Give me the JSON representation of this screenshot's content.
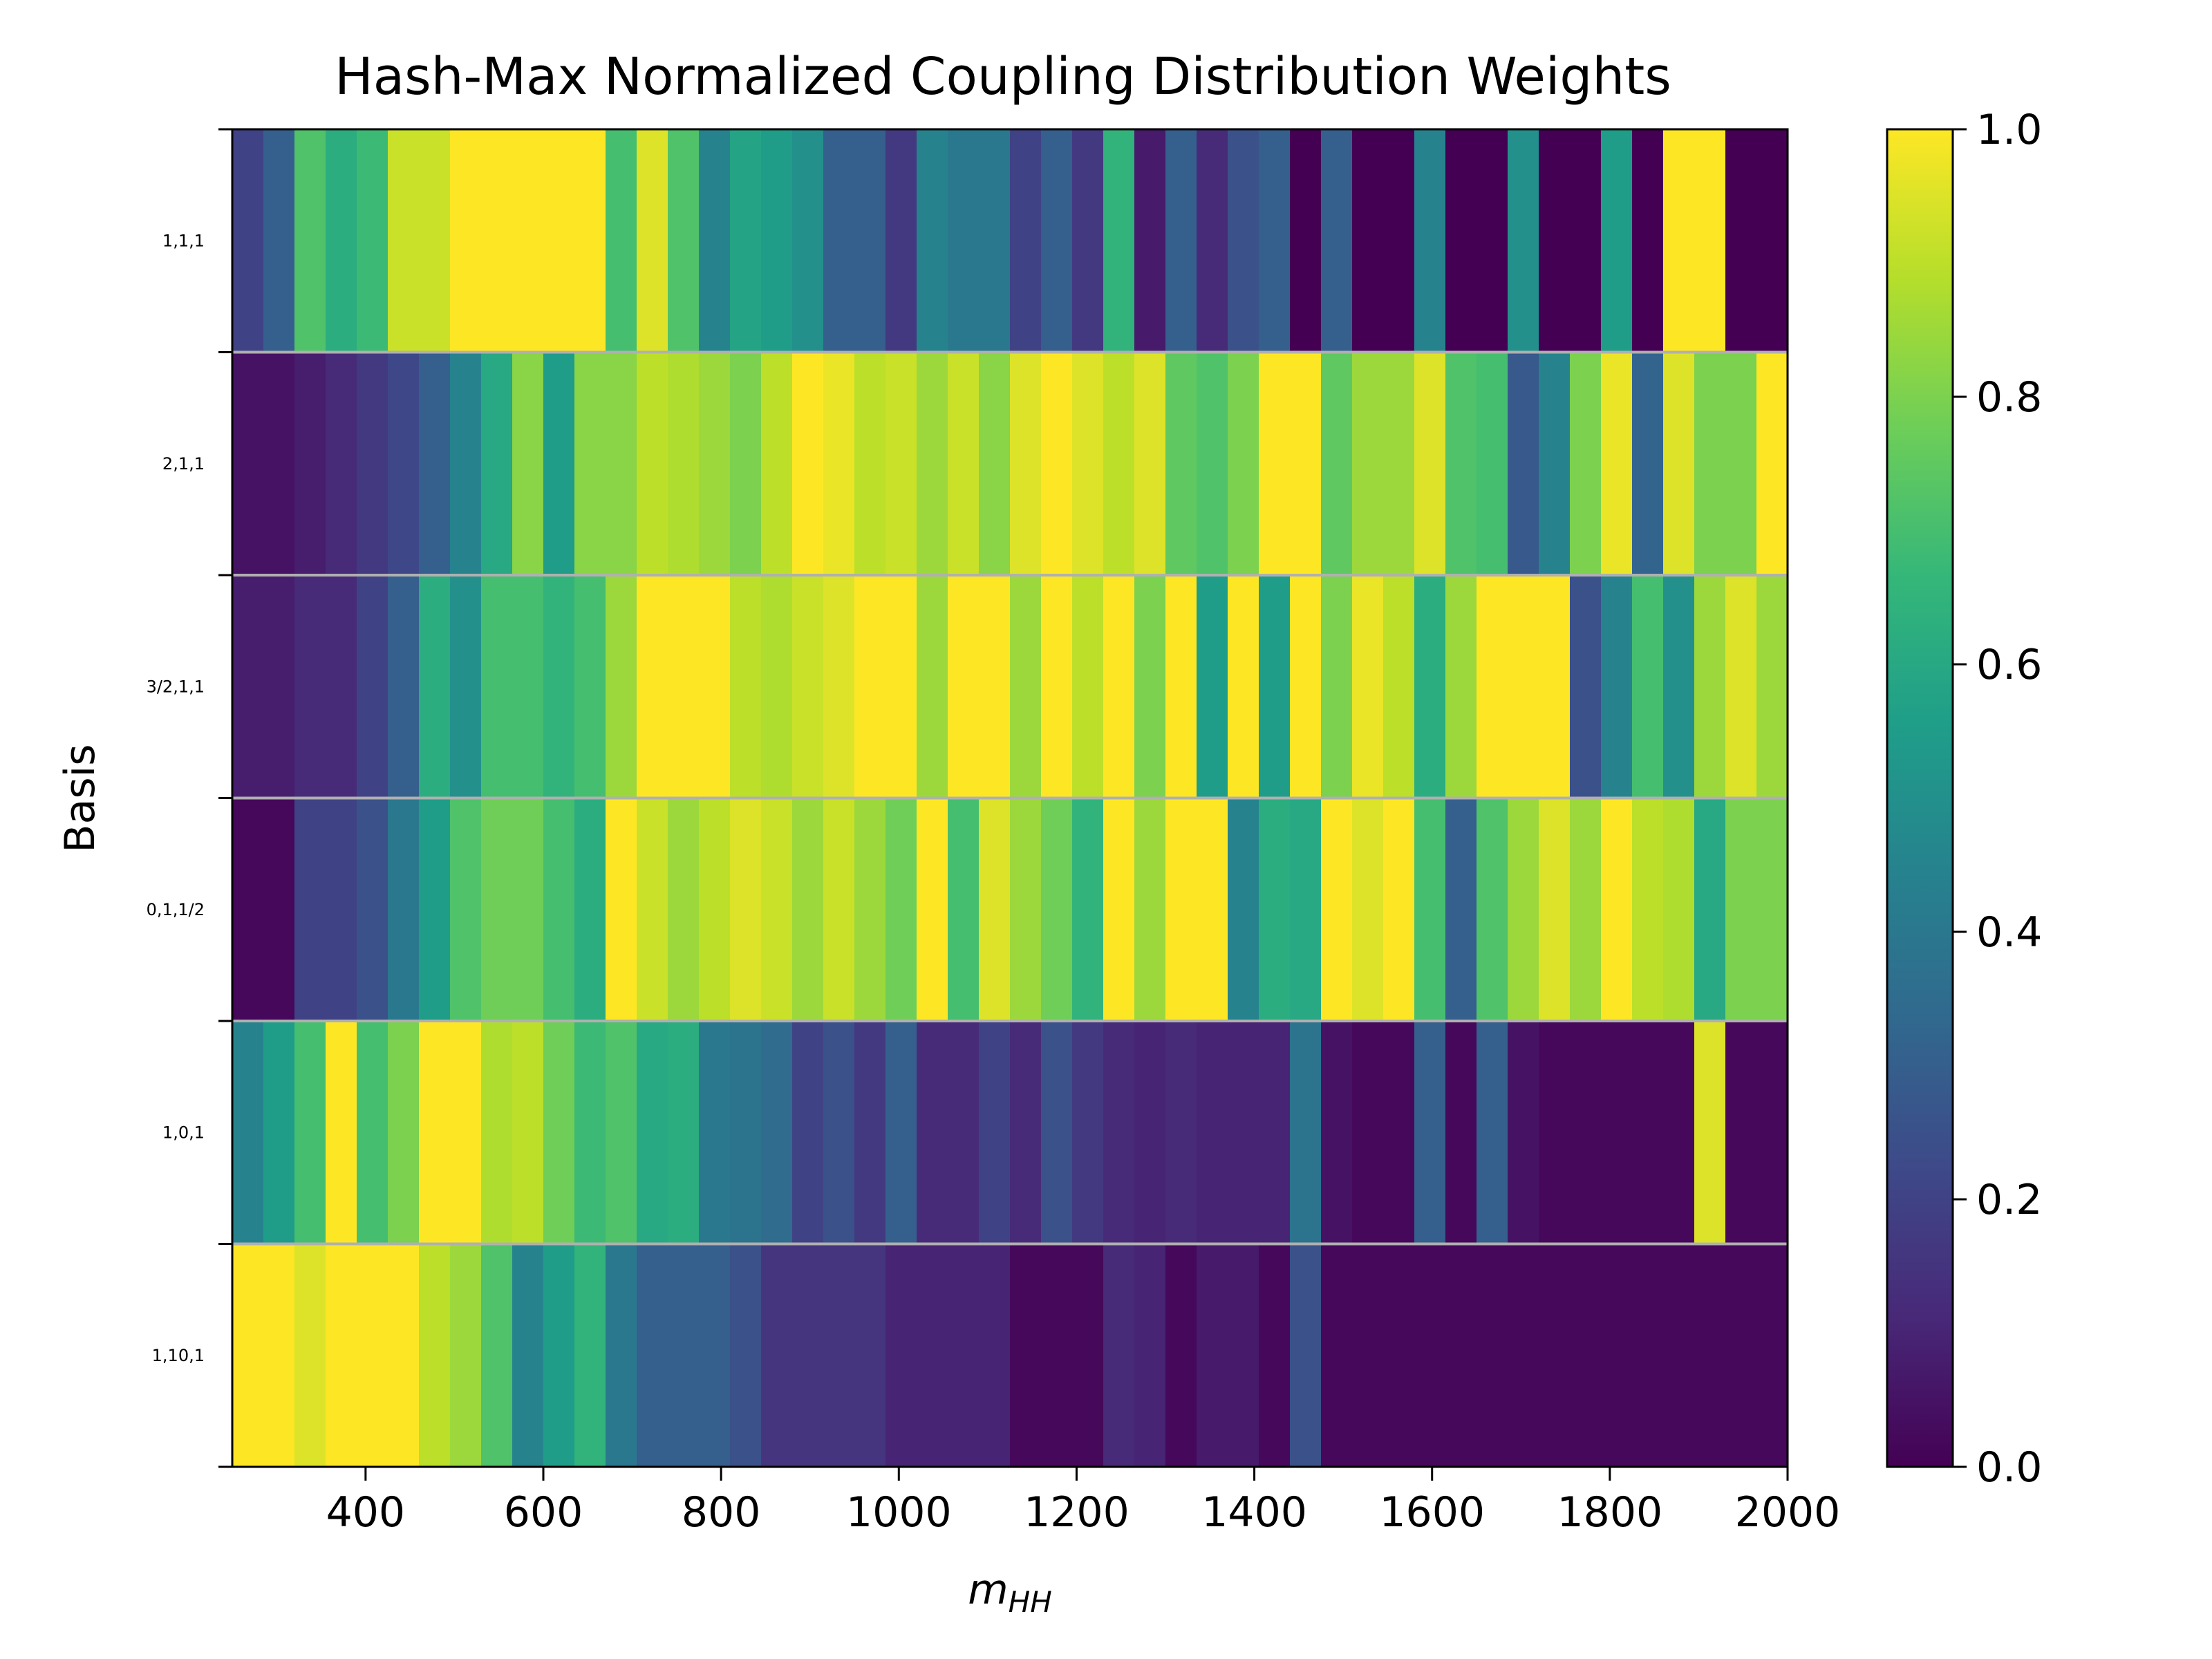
{
  "chart_data": {
    "type": "heatmap",
    "title": "Hash-Max Normalized Coupling Distribution Weights",
    "xlabel": "m",
    "xlabel_subscript": "HH",
    "ylabel": "Basis",
    "xlim": [
      250,
      2000
    ],
    "x_ticks": [
      400,
      600,
      800,
      1000,
      1200,
      1400,
      1600,
      1800,
      2000
    ],
    "x_tick_labels": [
      "400",
      "600",
      "800",
      "1000",
      "1200",
      "1400",
      "1600",
      "1800",
      "2000"
    ],
    "bin_edges": [
      250,
      285,
      320,
      355,
      390,
      425,
      460,
      495,
      530,
      565,
      600,
      635,
      670,
      705,
      740,
      775,
      810,
      845,
      880,
      915,
      950,
      985,
      1020,
      1055,
      1090,
      1125,
      1160,
      1195,
      1230,
      1265,
      1300,
      1335,
      1370,
      1405,
      1440,
      1475,
      1510,
      1545,
      1580,
      1615,
      1650,
      1685,
      1720,
      1755,
      1790,
      1825,
      1860,
      1895,
      1930,
      1965,
      2000
    ],
    "rows": [
      {
        "label": "1,1,1",
        "values": [
          0.2,
          0.3,
          0.72,
          0.62,
          0.68,
          0.92,
          0.92,
          1.0,
          1.0,
          1.0,
          1.0,
          1.0,
          0.7,
          0.95,
          0.72,
          0.45,
          0.58,
          0.55,
          0.5,
          0.3,
          0.3,
          0.17,
          0.45,
          0.4,
          0.4,
          0.2,
          0.3,
          0.17,
          0.65,
          0.07,
          0.3,
          0.12,
          0.25,
          0.3,
          0.0,
          0.3,
          0.0,
          0.0,
          0.45,
          0.0,
          0.0,
          0.5,
          0.0,
          0.0,
          0.55,
          0.0,
          1.0,
          1.0,
          0.0,
          0.0
        ]
      },
      {
        "label": "2,1,1",
        "values": [
          0.05,
          0.05,
          0.08,
          0.12,
          0.17,
          0.22,
          0.3,
          0.45,
          0.6,
          0.82,
          0.55,
          0.82,
          0.82,
          0.9,
          0.88,
          0.85,
          0.8,
          0.9,
          1.0,
          0.97,
          0.9,
          0.92,
          0.85,
          0.92,
          0.82,
          0.95,
          1.0,
          0.95,
          0.9,
          0.95,
          0.75,
          0.72,
          0.8,
          1.0,
          1.0,
          0.75,
          0.85,
          0.85,
          0.95,
          0.72,
          0.7,
          0.28,
          0.45,
          0.8,
          0.97,
          0.32,
          0.95,
          0.8,
          0.8,
          1.0
        ]
      },
      {
        "label": "3/2,1,1",
        "values": [
          0.08,
          0.08,
          0.12,
          0.12,
          0.2,
          0.3,
          0.62,
          0.5,
          0.7,
          0.7,
          0.65,
          0.7,
          0.85,
          1.0,
          1.0,
          1.0,
          0.9,
          0.88,
          0.92,
          0.95,
          1.0,
          1.0,
          0.85,
          1.0,
          1.0,
          0.85,
          1.0,
          0.9,
          1.0,
          0.8,
          1.0,
          0.55,
          1.0,
          0.55,
          1.0,
          0.8,
          0.97,
          0.9,
          0.62,
          0.85,
          1.0,
          1.0,
          1.0,
          0.25,
          0.45,
          0.7,
          0.5,
          0.85,
          0.95,
          0.85
        ]
      },
      {
        "label": "0,1,1/2",
        "values": [
          0.02,
          0.02,
          0.2,
          0.2,
          0.25,
          0.4,
          0.55,
          0.72,
          0.78,
          0.78,
          0.7,
          0.62,
          1.0,
          0.92,
          0.85,
          0.9,
          0.95,
          0.92,
          0.85,
          0.92,
          0.85,
          0.78,
          1.0,
          0.7,
          0.95,
          0.85,
          0.78,
          0.65,
          1.0,
          0.85,
          1.0,
          1.0,
          0.45,
          0.62,
          0.6,
          1.0,
          0.95,
          1.0,
          0.7,
          0.3,
          0.72,
          0.85,
          0.95,
          0.85,
          1.0,
          0.9,
          0.88,
          0.6,
          0.8,
          0.8
        ]
      },
      {
        "label": "1,0,1",
        "values": [
          0.45,
          0.55,
          0.7,
          1.0,
          0.7,
          0.8,
          1.0,
          1.0,
          0.88,
          0.9,
          0.78,
          0.68,
          0.72,
          0.6,
          0.62,
          0.4,
          0.38,
          0.35,
          0.2,
          0.25,
          0.17,
          0.3,
          0.12,
          0.12,
          0.2,
          0.12,
          0.25,
          0.17,
          0.12,
          0.1,
          0.12,
          0.1,
          0.1,
          0.1,
          0.38,
          0.05,
          0.02,
          0.02,
          0.3,
          0.02,
          0.3,
          0.05,
          0.02,
          0.02,
          0.02,
          0.02,
          0.02,
          0.95,
          0.02,
          0.02
        ]
      },
      {
        "label": "1,10,1",
        "values": [
          1.0,
          1.0,
          0.95,
          1.0,
          1.0,
          1.0,
          0.9,
          0.85,
          0.72,
          0.45,
          0.55,
          0.65,
          0.4,
          0.3,
          0.3,
          0.3,
          0.25,
          0.15,
          0.15,
          0.15,
          0.15,
          0.1,
          0.1,
          0.1,
          0.1,
          0.02,
          0.02,
          0.02,
          0.12,
          0.1,
          0.02,
          0.07,
          0.07,
          0.02,
          0.25,
          0.02,
          0.02,
          0.02,
          0.02,
          0.02,
          0.02,
          0.02,
          0.02,
          0.02,
          0.02,
          0.02,
          0.02,
          0.02,
          0.02,
          0.02
        ]
      }
    ],
    "colormap": "viridis",
    "colormap_stops": [
      "#440154",
      "#482878",
      "#3e4989",
      "#31688e",
      "#26828e",
      "#1f9e89",
      "#35b779",
      "#6ece58",
      "#b5de2b",
      "#fde725"
    ],
    "colorbar": {
      "range": [
        0.0,
        1.0
      ],
      "ticks": [
        0.0,
        0.2,
        0.4,
        0.6,
        0.8,
        1.0
      ],
      "tick_labels": [
        "0.0",
        "0.2",
        "0.4",
        "0.6",
        "0.8",
        "1.0"
      ]
    },
    "row_separator_color": "#b0b0b0",
    "grid": false
  }
}
